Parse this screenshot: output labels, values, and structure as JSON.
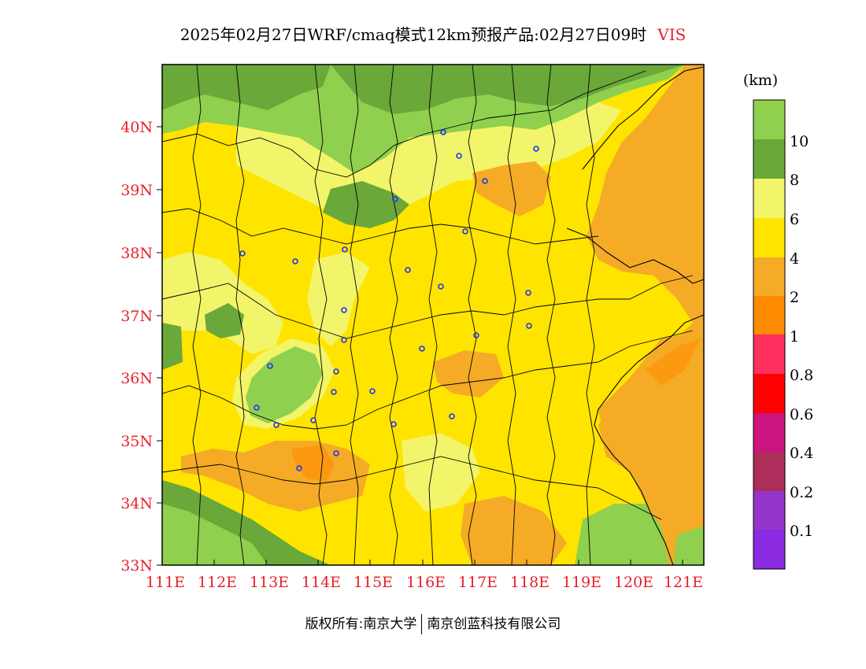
{
  "title": {
    "text": "2025年02月27日WRF/cmaq模式12km预报产品:02月27日09时",
    "variable": "VIS"
  },
  "colors": {
    "axis_labels": "#e8202a",
    "borders": "#000000",
    "city_markers": "#2233ee"
  },
  "axes": {
    "lon_ticks": [
      "111E",
      "112E",
      "113E",
      "114E",
      "115E",
      "116E",
      "117E",
      "118E",
      "119E",
      "120E",
      "121E"
    ],
    "lat_ticks": [
      "33N",
      "34N",
      "35N",
      "36N",
      "37N",
      "38N",
      "39N",
      "40N"
    ]
  },
  "colorbar": {
    "unit": "(km)",
    "labels": [
      "10",
      "8",
      "6",
      "4",
      "2",
      "1",
      "0.8",
      "0.6",
      "0.4",
      "0.2",
      "0.1"
    ],
    "colors": [
      "#8fd04e",
      "#6aa83a",
      "#f2f46a",
      "#ffe400",
      "#f5ab26",
      "#ff8c00",
      "#ff2f5e",
      "#ff0000",
      "#cc1480",
      "#ad2d5b",
      "#9436cc",
      "#8a2be2"
    ]
  },
  "footer": {
    "left": "版权所有:南京大学",
    "right": "南京创蓝科技有限公司"
  }
}
